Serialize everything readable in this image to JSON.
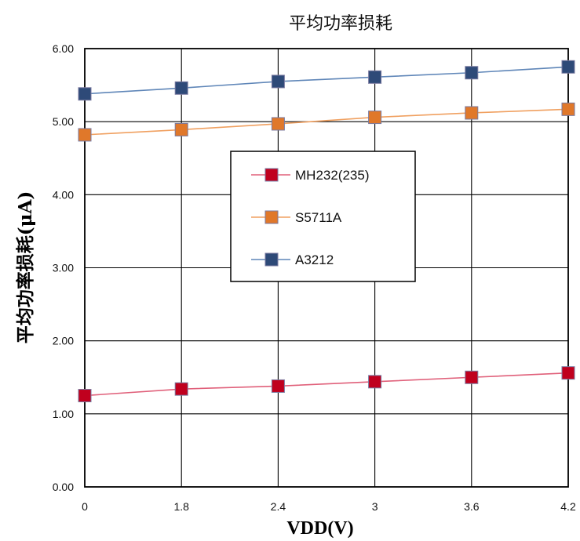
{
  "chart_data": {
    "type": "line",
    "title": "平均功率损耗",
    "xlabel": "VDD(V)",
    "ylabel": "平均功率损耗(μA)",
    "categories": [
      "0",
      "1.8",
      "2.4",
      "3",
      "3.6",
      "4.2"
    ],
    "ylim": [
      0,
      6
    ],
    "yticks": [
      "0.00",
      "1.00",
      "2.00",
      "3.00",
      "4.00",
      "5.00",
      "6.00"
    ],
    "grid": true,
    "legend_position": "center-left",
    "series": [
      {
        "name": "MH232(235)",
        "values": [
          1.25,
          1.34,
          1.38,
          1.44,
          1.5,
          1.56
        ],
        "color": "#c0001e",
        "line_color": "#e0607a"
      },
      {
        "name": "S5711A",
        "values": [
          4.82,
          4.89,
          4.97,
          5.06,
          5.12,
          5.17
        ],
        "color": "#e0782a",
        "line_color": "#f0a060"
      },
      {
        "name": "A3212",
        "values": [
          5.38,
          5.46,
          5.55,
          5.61,
          5.67,
          5.75
        ],
        "color": "#2e4a78",
        "line_color": "#5f86b8"
      }
    ]
  }
}
